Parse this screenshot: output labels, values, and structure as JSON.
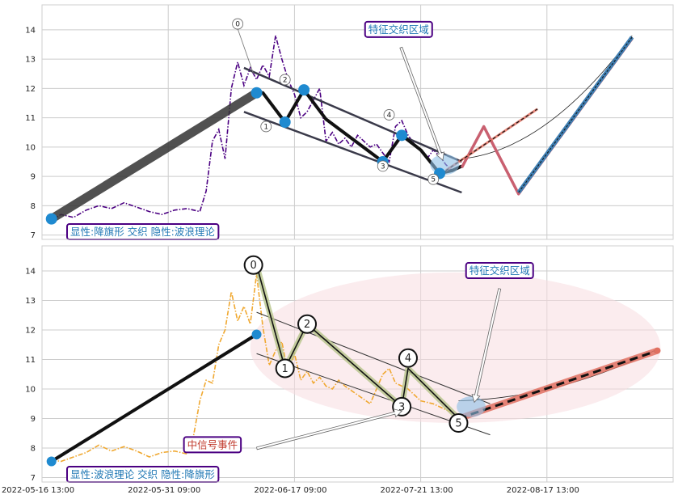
{
  "chart_data": [
    {
      "type": "line",
      "ylim": [
        6.85,
        14.85
      ],
      "yticks": [
        7,
        8,
        9,
        10,
        11,
        12,
        13,
        14
      ],
      "xlim": [
        0,
        100
      ],
      "grid": true,
      "price_series": {
        "color": "#4b0082",
        "points": [
          [
            1.5,
            7.5
          ],
          [
            3,
            7.7
          ],
          [
            5,
            7.6
          ],
          [
            7,
            7.85
          ],
          [
            9,
            8.0
          ],
          [
            11,
            7.9
          ],
          [
            13,
            8.1
          ],
          [
            15,
            7.95
          ],
          [
            17,
            7.8
          ],
          [
            19,
            7.7
          ],
          [
            21,
            7.85
          ],
          [
            23,
            7.9
          ],
          [
            25,
            7.8
          ],
          [
            26,
            8.5
          ],
          [
            27,
            10.2
          ],
          [
            28,
            10.6
          ],
          [
            29,
            9.6
          ],
          [
            30,
            12.0
          ],
          [
            31,
            12.9
          ],
          [
            32,
            12.1
          ],
          [
            33,
            12.7
          ],
          [
            34,
            12.3
          ],
          [
            35,
            12.8
          ],
          [
            36,
            12.4
          ],
          [
            37,
            13.8
          ],
          [
            38,
            13.0
          ],
          [
            39,
            12.3
          ],
          [
            40,
            11.8
          ],
          [
            41,
            11.0
          ],
          [
            42,
            11.2
          ],
          [
            43,
            11.6
          ],
          [
            44,
            12.0
          ],
          [
            45,
            10.2
          ],
          [
            46,
            10.5
          ],
          [
            47,
            10.1
          ],
          [
            48,
            10.3
          ],
          [
            49,
            10.0
          ],
          [
            50,
            10.4
          ],
          [
            51,
            10.2
          ],
          [
            52,
            10.0
          ],
          [
            53,
            10.1
          ],
          [
            54,
            9.8
          ],
          [
            55,
            9.5
          ],
          [
            56,
            10.7
          ],
          [
            57,
            10.9
          ],
          [
            58,
            10.4
          ],
          [
            59,
            10.1
          ],
          [
            60,
            9.9
          ],
          [
            61,
            9.6
          ],
          [
            62,
            9.9
          ],
          [
            63,
            9.7
          ],
          [
            64,
            9.4
          ],
          [
            65,
            9.2
          ]
        ]
      },
      "wave_path": {
        "color": "#111111",
        "points": [
          [
            1.5,
            7.55
          ],
          [
            34,
            11.85
          ],
          [
            35,
            11.85
          ],
          [
            38.5,
            10.85
          ],
          [
            41.5,
            11.95
          ],
          [
            45,
            10.95
          ],
          [
            54,
            9.5
          ],
          [
            57,
            10.4
          ],
          [
            60,
            9.9
          ],
          [
            63,
            9.1
          ],
          [
            65,
            9.2
          ],
          [
            66.5,
            9.35
          ]
        ]
      },
      "wave_labels": [
        {
          "label": "0",
          "x": 31,
          "y": 14.2,
          "marker": true,
          "mx": 31,
          "my": 13.9
        },
        {
          "label": "1",
          "x": 35.5,
          "y": 10.7,
          "marker": true,
          "mx": 35.5,
          "my": 10.85
        },
        {
          "label": "2",
          "x": 38.5,
          "y": 12.3,
          "marker": true,
          "mx": 38.5,
          "my": 11.95
        },
        {
          "label": "3",
          "x": 54,
          "y": 9.35,
          "marker": true,
          "mx": 54,
          "my": 9.5
        },
        {
          "label": "4",
          "x": 55,
          "y": 11.1,
          "marker": true,
          "mx": 57,
          "my": 10.4
        },
        {
          "label": "5",
          "x": 62,
          "y": 8.9,
          "marker": true,
          "mx": 63,
          "my": 9.1
        }
      ],
      "channel": [
        [
          [
            32,
            12.7
          ],
          [
            66.5,
            9.5
          ]
        ],
        [
          [
            32,
            11.2
          ],
          [
            66.5,
            8.45
          ]
        ]
      ],
      "forecast_zigzag": {
        "color": "#c96070",
        "points": [
          [
            66.5,
            9.3
          ],
          [
            70,
            10.7
          ],
          [
            75.5,
            8.4
          ],
          [
            93.5,
            13.7
          ]
        ]
      },
      "forecast_dashed": {
        "color": "#e07060",
        "points": [
          [
            64,
            9.2
          ],
          [
            78.5,
            11.3
          ]
        ]
      },
      "forecast_blue": {
        "color": "#3f7fb3",
        "points": [
          [
            75.5,
            8.45
          ],
          [
            93.5,
            13.75
          ]
        ]
      },
      "arc_points": [
        [
          66.5,
          9.6
        ],
        [
          80,
          9.9
        ],
        [
          93.5,
          13.8
        ]
      ],
      "highlight": {
        "cx": 63.8,
        "cy": 9.4,
        "rx": 2.3,
        "ry": 0.35
      },
      "annotation_top": {
        "text": "特征交织区域",
        "x": 56.5,
        "y": 14.0
      },
      "arrow_target": {
        "x": 63.5,
        "y": 9.55
      },
      "bottom_label": "显性:降旗形 交织 隐性:波浪理论",
      "vgrid_x": [
        0,
        20,
        40,
        60,
        80,
        100
      ]
    },
    {
      "type": "line",
      "ylim": [
        6.85,
        14.85
      ],
      "yticks": [
        7,
        8,
        9,
        10,
        11,
        12,
        13,
        14
      ],
      "xlim": [
        0,
        100
      ],
      "grid": true,
      "xticks": [
        "2022-05-16 13:00",
        "2022-05-31 09:00",
        "2022-06-17 09:00",
        "2022-07-21 13:00",
        "2022-08-17 13:00"
      ],
      "price_series": {
        "color": "#f0a830",
        "points": [
          [
            1.5,
            7.6
          ],
          [
            3,
            7.55
          ],
          [
            5,
            7.7
          ],
          [
            7,
            7.85
          ],
          [
            9,
            8.1
          ],
          [
            11,
            7.9
          ],
          [
            13,
            8.05
          ],
          [
            15,
            7.9
          ],
          [
            17,
            7.7
          ],
          [
            19,
            7.85
          ],
          [
            21,
            7.9
          ],
          [
            23,
            7.8
          ],
          [
            24,
            8.4
          ],
          [
            25,
            9.6
          ],
          [
            26,
            10.3
          ],
          [
            27,
            10.2
          ],
          [
            28,
            11.5
          ],
          [
            29,
            12.0
          ],
          [
            30,
            13.3
          ],
          [
            31,
            12.3
          ],
          [
            32,
            12.8
          ],
          [
            33,
            12.2
          ],
          [
            34,
            13.9
          ],
          [
            35,
            12.1
          ],
          [
            36,
            10.8
          ],
          [
            37,
            11.3
          ],
          [
            38,
            11.6
          ],
          [
            39,
            10.5
          ],
          [
            40,
            11.2
          ],
          [
            41,
            10.3
          ],
          [
            42,
            10.6
          ],
          [
            43,
            10.2
          ],
          [
            44,
            10.4
          ],
          [
            45,
            10.1
          ],
          [
            46,
            10.0
          ],
          [
            47,
            10.3
          ],
          [
            48,
            10.1
          ],
          [
            50,
            9.8
          ],
          [
            52,
            9.5
          ],
          [
            54,
            10.5
          ],
          [
            55,
            10.7
          ],
          [
            56,
            10.2
          ],
          [
            58,
            10.0
          ],
          [
            60,
            9.6
          ],
          [
            62,
            9.5
          ],
          [
            64,
            9.3
          ],
          [
            66,
            9.1
          ]
        ]
      },
      "wave_path": {
        "color": "#111111",
        "points": [
          [
            1.5,
            7.55
          ],
          [
            34,
            11.85
          ]
        ]
      },
      "zigzag_green": {
        "color": "#7a8a3a",
        "points": [
          [
            34,
            14.2
          ],
          [
            38.5,
            10.7
          ],
          [
            42,
            12.2
          ],
          [
            57,
            9.4
          ],
          [
            58,
            10.7
          ],
          [
            66,
            9.0
          ]
        ]
      },
      "wave_labels": [
        {
          "label": "0",
          "x": 33.5,
          "y": 14.2
        },
        {
          "label": "1",
          "x": 38.5,
          "y": 10.7
        },
        {
          "label": "2",
          "x": 42,
          "y": 12.2
        },
        {
          "label": "3",
          "x": 57,
          "y": 9.4
        },
        {
          "label": "4",
          "x": 58,
          "y": 11.05
        },
        {
          "label": "5",
          "x": 66,
          "y": 8.85
        }
      ],
      "channel": [
        [
          [
            34,
            12.6
          ],
          [
            71,
            9.5
          ]
        ],
        [
          [
            34,
            11.2
          ],
          [
            71,
            8.45
          ]
        ]
      ],
      "forecast_dashed": {
        "color": "#e07060",
        "points": [
          [
            66,
            9.0
          ],
          [
            97.5,
            11.3
          ]
        ]
      },
      "arc_points": [
        [
          66,
          9.6
        ],
        [
          82,
          9.7
        ],
        [
          97.5,
          11.35
        ]
      ],
      "highlight": {
        "cx": 68,
        "cy": 9.4,
        "rx": 2.3,
        "ry": 0.35
      },
      "big_ellipse": {
        "cx": 65.5,
        "cy": 11.4,
        "rx": 32.5,
        "ry": 2.55
      },
      "annotation_top": {
        "text": "特征交织区域",
        "x": 72.5,
        "y": 14.0
      },
      "arrow_target": {
        "x": 68.5,
        "y": 9.55
      },
      "annotation_mid": {
        "text": "中信号事件",
        "x": 27,
        "y": 8.1
      },
      "mid_arrow_target": {
        "x": 57,
        "y": 9.25
      },
      "bottom_label": "显性:波浪理论 交织 隐性:降旗形",
      "vgrid_x": [
        0,
        20,
        40,
        60,
        80,
        100
      ]
    }
  ],
  "colors": {
    "blue_marker": "#1f8ad0",
    "annotation_border": "#4b0082",
    "annotation_text_blue": "#1f77b4",
    "annotation_text_red": "#c0392b",
    "grid": "#cccccc"
  }
}
